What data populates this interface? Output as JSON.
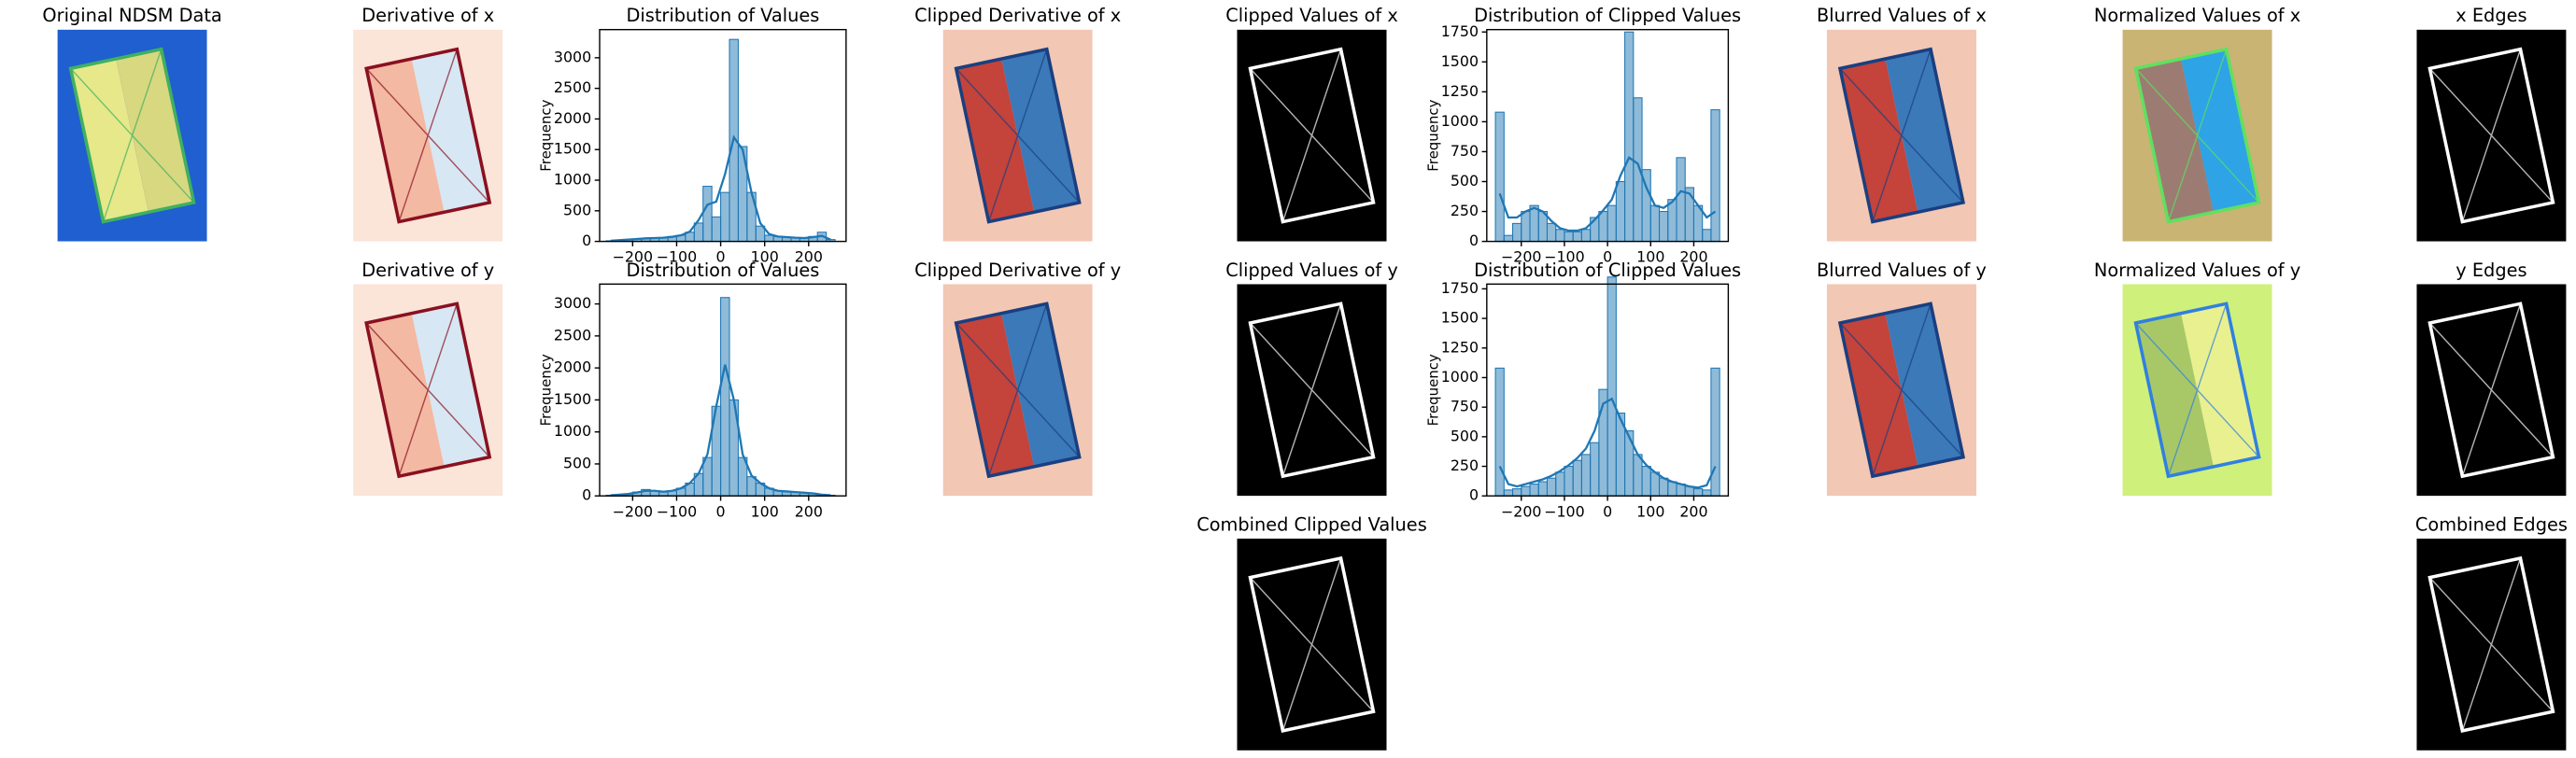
{
  "chart_data": [
    {
      "type": "image",
      "title": "Original NDSM Data",
      "colormap": "terrain"
    },
    {
      "type": "image",
      "title": "Derivative of x",
      "colormap": "RdBu-soft"
    },
    {
      "type": "histogram",
      "title": "Distribution of Values",
      "ylabel": "Frequency",
      "color": "#1f77b4",
      "bins": [
        -260,
        -240,
        -220,
        -200,
        -180,
        -160,
        -140,
        -120,
        -100,
        -80,
        -60,
        -40,
        -20,
        0,
        20,
        40,
        60,
        80,
        100,
        120,
        140,
        160,
        180,
        200,
        220,
        240,
        260
      ],
      "values": [
        10,
        20,
        30,
        40,
        50,
        60,
        60,
        80,
        100,
        150,
        300,
        900,
        400,
        800,
        3300,
        1550,
        800,
        250,
        100,
        80,
        70,
        60,
        50,
        80,
        150,
        30
      ],
      "kde": [
        10,
        20,
        30,
        40,
        50,
        55,
        60,
        75,
        100,
        160,
        350,
        600,
        650,
        1100,
        1700,
        1500,
        800,
        300,
        120,
        80,
        70,
        60,
        55,
        70,
        90,
        30
      ],
      "xlim": [
        -275,
        285
      ],
      "ylim": [
        0,
        3460
      ],
      "xticks": [
        {
          "value": -200,
          "label": "−200"
        },
        {
          "value": -100,
          "label": "−100"
        },
        0,
        100,
        200
      ],
      "yticks": [
        0,
        500,
        1000,
        1500,
        2000,
        2500,
        3000
      ]
    },
    {
      "type": "image",
      "title": "Clipped Derivative of x",
      "colormap": "RdBu"
    },
    {
      "type": "image",
      "title": "Clipped Values  of x",
      "colormap": "gray"
    },
    {
      "type": "histogram",
      "title": "Distribution of Clipped Values",
      "ylabel": "Frequency",
      "color": "#1f77b4",
      "bins": [
        -260,
        -240,
        -220,
        -200,
        -180,
        -160,
        -140,
        -120,
        -100,
        -80,
        -60,
        -40,
        -20,
        0,
        20,
        40,
        60,
        80,
        100,
        120,
        140,
        160,
        180,
        200,
        220,
        240,
        260
      ],
      "values": [
        1080,
        50,
        150,
        250,
        300,
        250,
        150,
        100,
        80,
        80,
        100,
        200,
        250,
        300,
        500,
        1750,
        1200,
        600,
        300,
        250,
        350,
        700,
        450,
        300,
        100,
        1100
      ],
      "kde": [
        400,
        200,
        200,
        250,
        280,
        250,
        170,
        110,
        90,
        90,
        110,
        180,
        260,
        350,
        550,
        700,
        650,
        450,
        300,
        280,
        330,
        420,
        400,
        300,
        200,
        250
      ],
      "xlim": [
        -280,
        280
      ],
      "ylim": [
        0,
        1770
      ],
      "xticks": [
        {
          "value": -200,
          "label": "−200"
        },
        {
          "value": -100,
          "label": "−100"
        },
        0,
        100,
        200
      ],
      "yticks": [
        0,
        250,
        500,
        750,
        1000,
        1250,
        1500,
        1750
      ]
    },
    {
      "type": "image",
      "title": "Blurred Values of x",
      "colormap": "RdBu"
    },
    {
      "type": "image",
      "title": "Normalized Values of x",
      "colormap": "terrain-x"
    },
    {
      "type": "image",
      "title": "x Edges",
      "colormap": "gray"
    },
    {
      "type": "image",
      "title": "Derivative of y",
      "colormap": "RdBu-soft"
    },
    {
      "type": "histogram",
      "title": "Distribution of Values",
      "ylabel": "Frequency",
      "color": "#1f77b4",
      "bins": [
        -260,
        -240,
        -220,
        -200,
        -180,
        -160,
        -140,
        -120,
        -100,
        -80,
        -60,
        -40,
        -20,
        0,
        20,
        40,
        60,
        80,
        100,
        120,
        140,
        160,
        180,
        200,
        220,
        240,
        260
      ],
      "values": [
        10,
        20,
        30,
        60,
        100,
        80,
        60,
        80,
        120,
        200,
        350,
        600,
        1400,
        3100,
        1500,
        600,
        300,
        200,
        120,
        80,
        70,
        60,
        50,
        40,
        20,
        10
      ],
      "kde": [
        10,
        20,
        30,
        55,
        80,
        80,
        65,
        80,
        120,
        200,
        350,
        650,
        1400,
        2050,
        1500,
        650,
        320,
        200,
        120,
        80,
        70,
        60,
        50,
        40,
        20,
        10
      ],
      "xlim": [
        -275,
        285
      ],
      "ylim": [
        0,
        3310
      ],
      "xticks": [
        {
          "value": -200,
          "label": "−200"
        },
        {
          "value": -100,
          "label": "−100"
        },
        0,
        100,
        200
      ],
      "yticks": [
        0,
        500,
        1000,
        1500,
        2000,
        2500,
        3000
      ]
    },
    {
      "type": "image",
      "title": "Clipped Derivative of y",
      "colormap": "RdBu"
    },
    {
      "type": "image",
      "title": "Clipped Values  of y",
      "colormap": "gray"
    },
    {
      "type": "histogram",
      "title": "Distribution of Clipped Values",
      "ylabel": "Frequency",
      "color": "#1f77b4",
      "bins": [
        -260,
        -240,
        -220,
        -200,
        -180,
        -160,
        -140,
        -120,
        -100,
        -80,
        -60,
        -40,
        -20,
        0,
        20,
        40,
        60,
        80,
        100,
        120,
        140,
        160,
        180,
        200,
        220,
        240,
        260
      ],
      "values": [
        1080,
        50,
        60,
        80,
        100,
        120,
        150,
        200,
        250,
        300,
        350,
        450,
        900,
        1850,
        700,
        550,
        350,
        250,
        200,
        150,
        120,
        100,
        80,
        60,
        50,
        1080
      ],
      "kde": [
        250,
        100,
        80,
        100,
        120,
        140,
        170,
        210,
        260,
        320,
        400,
        550,
        780,
        820,
        650,
        500,
        350,
        260,
        200,
        150,
        120,
        100,
        80,
        70,
        90,
        250
      ],
      "xlim": [
        -280,
        280
      ],
      "ylim": [
        0,
        1790
      ],
      "xticks": [
        {
          "value": -200,
          "label": "−200"
        },
        {
          "value": -100,
          "label": "−100"
        },
        0,
        100,
        200
      ],
      "yticks": [
        0,
        250,
        500,
        750,
        1000,
        1250,
        1500,
        1750
      ]
    },
    {
      "type": "image",
      "title": "Blurred Values of y",
      "colormap": "RdBu"
    },
    {
      "type": "image",
      "title": "Normalized Values of y",
      "colormap": "terrain-y"
    },
    {
      "type": "image",
      "title": "y Edges",
      "colormap": "gray"
    },
    {
      "type": "image",
      "title": "Combined Clipped Values",
      "colormap": "gray"
    },
    {
      "type": "image",
      "title": "Combined Edges",
      "colormap": "gray"
    }
  ]
}
